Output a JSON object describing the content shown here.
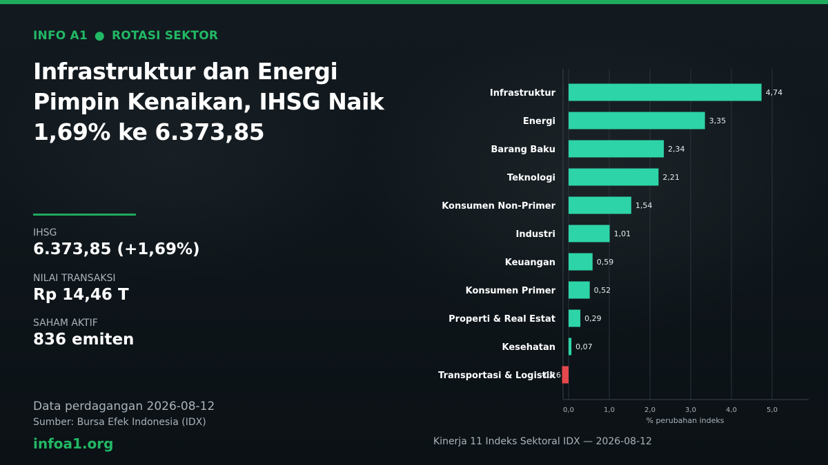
{
  "header": {
    "brand": "INFO A1",
    "separator": "●",
    "section": "ROTASI SEKTOR",
    "headline_line1": "Infrastruktur dan Energi",
    "headline_line2": "Pimpin Kenaikan, IHSG Naik",
    "headline_line3": "1,69% ke 6.373,85"
  },
  "stats": {
    "ihsg_label": "IHSG",
    "ihsg_value": "6.373,85  (+1,69%)",
    "transaction_label": "NILAI TRANSAKSI",
    "transaction_value": "Rp 14,46 T",
    "active_label": "SAHAM AKTIF",
    "active_value": "836 emiten"
  },
  "footer": {
    "trade_date_note": "Data perdagangan 2026-08-12",
    "source": "Sumber: Bursa Efek Indonesia (IDX)",
    "site": "infoa1.org",
    "chart_caption": "Kinerja 11 Indeks Sektoral IDX — 2026-08-12"
  },
  "colors": {
    "accent": "#1faa5e",
    "positive_bar": "#2dd4a7",
    "negative_bar": "#e5484d"
  },
  "chart_data": {
    "type": "bar",
    "orientation": "horizontal",
    "categories": [
      "Infrastruktur",
      "Energi",
      "Barang Baku",
      "Teknologi",
      "Konsumen Non-Primer",
      "Industri",
      "Keuangan",
      "Konsumen Primer",
      "Properti & Real Estat",
      "Kesehatan",
      "Transportasi & Logistik"
    ],
    "values": [
      4.74,
      3.35,
      2.34,
      2.21,
      1.54,
      1.01,
      0.59,
      0.52,
      0.29,
      0.07,
      -0.16
    ],
    "value_labels": [
      "4,74",
      "3,35",
      "2,34",
      "2,21",
      "1,54",
      "1,01",
      "0,59",
      "0,52",
      "0,29",
      "0,07",
      "-0,16"
    ],
    "xlabel": "% perubahan indeks",
    "ylabel": "",
    "xlim": [
      -0.2,
      5.9
    ],
    "xticks": [
      0,
      1,
      2,
      3,
      4,
      5
    ],
    "xtick_labels": [
      "0,0",
      "1,0",
      "2,0",
      "3,0",
      "4,0",
      "5,0"
    ],
    "grid": true,
    "legend": "none"
  }
}
